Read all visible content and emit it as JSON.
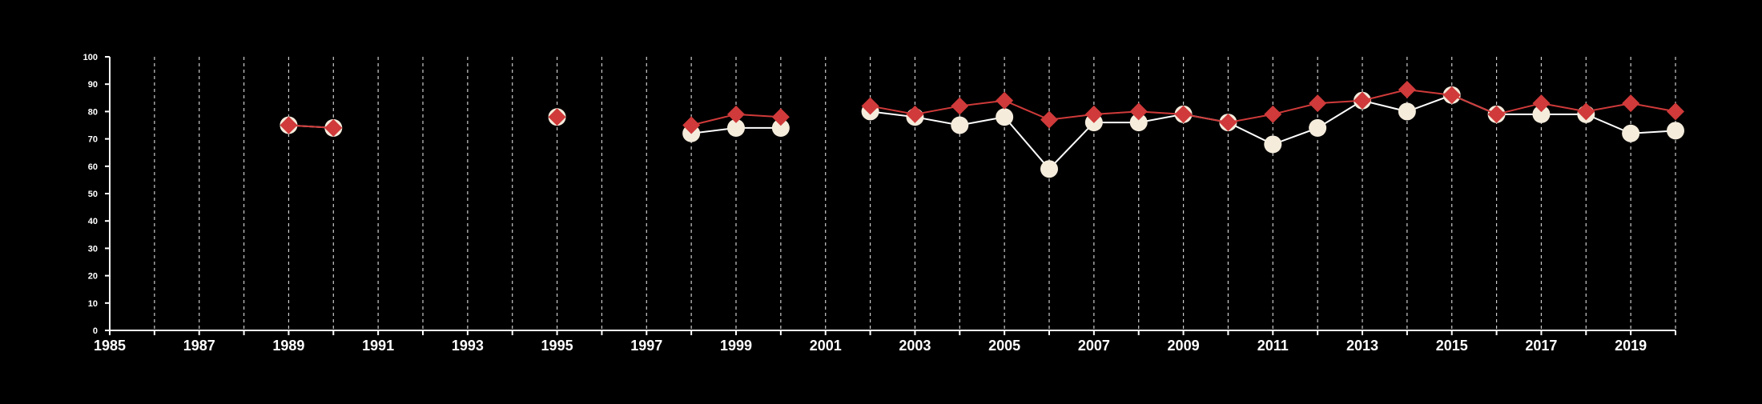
{
  "chart_data": {
    "type": "line",
    "title": "",
    "xlabel": "",
    "ylabel": "",
    "xlim": [
      1985,
      2020
    ],
    "ylim": [
      0,
      100
    ],
    "x_ticks": [
      1985,
      1987,
      1989,
      1991,
      1993,
      1995,
      1997,
      1999,
      2001,
      2003,
      2005,
      2007,
      2009,
      2011,
      2013,
      2015,
      2017,
      2019
    ],
    "y_ticks": [
      0,
      10,
      20,
      30,
      40,
      50,
      60,
      70,
      80,
      90,
      100
    ],
    "grid": "vertical dashed lines at each year",
    "legend": "none",
    "background": "#000000",
    "axis_color": "#ffffff",
    "series": [
      {
        "color": "#f5ecdc",
        "line_color": "#ffffff",
        "marker": "circle",
        "x": [
          1989,
          1990,
          1995,
          1998,
          1999,
          2000,
          2002,
          2003,
          2004,
          2005,
          2006,
          2007,
          2008,
          2009,
          2010,
          2011,
          2012,
          2013,
          2014,
          2015,
          2016,
          2017,
          2018,
          2019,
          2020
        ],
        "y": [
          75,
          74,
          78,
          72,
          74,
          74,
          80,
          78,
          75,
          78,
          59,
          76,
          76,
          79,
          76,
          68,
          74,
          84,
          80,
          86,
          79,
          79,
          79,
          72,
          73
        ]
      },
      {
        "color": "#d03a3a",
        "line_color": "#d03a3a",
        "marker": "diamond",
        "x": [
          1989,
          1990,
          1995,
          1998,
          1999,
          2000,
          2002,
          2003,
          2004,
          2005,
          2006,
          2007,
          2008,
          2009,
          2010,
          2011,
          2012,
          2013,
          2014,
          2015,
          2016,
          2017,
          2018,
          2019,
          2020
        ],
        "y": [
          75,
          74,
          78,
          75,
          79,
          78,
          82,
          79,
          82,
          84,
          77,
          79,
          80,
          79,
          76,
          79,
          83,
          84,
          88,
          86,
          79,
          83,
          80,
          83,
          80
        ]
      }
    ]
  }
}
